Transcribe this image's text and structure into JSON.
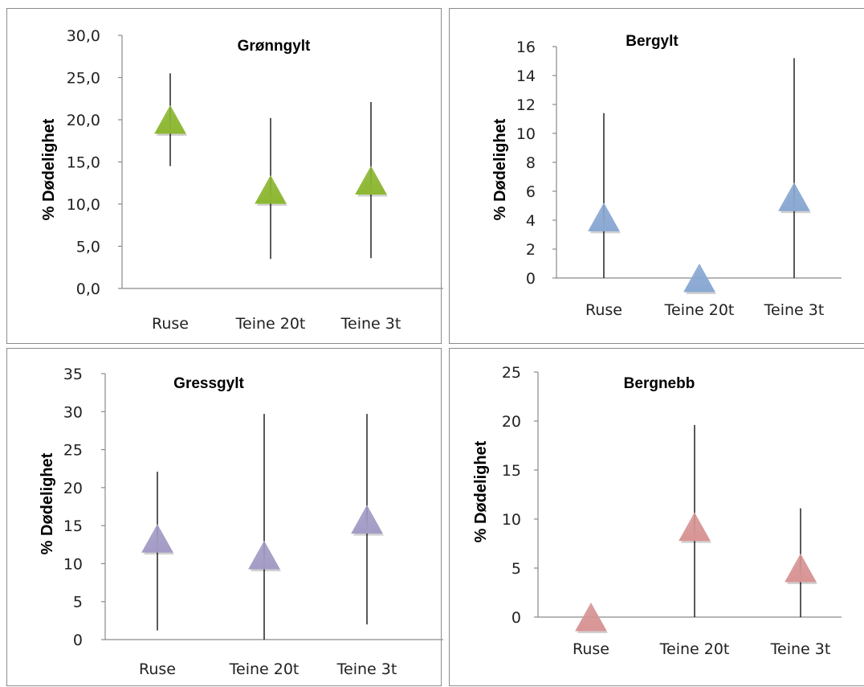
{
  "chart_data": [
    {
      "type": "scatter",
      "title": "Grønngylt",
      "ylabel": "% Dødelighet",
      "categories": [
        "Ruse",
        "Teine 20t",
        "Teine 3t"
      ],
      "values": [
        20.0,
        11.7,
        12.8
      ],
      "error_low": [
        14.5,
        3.5,
        3.6
      ],
      "error_high": [
        25.5,
        20.2,
        22.1
      ],
      "ylim": [
        0,
        30
      ],
      "yticks": [
        "0,0",
        "5,0",
        "10,0",
        "15,0",
        "20,0",
        "25,0",
        "30,0"
      ],
      "marker": "triangle",
      "color": "#8db832"
    },
    {
      "type": "scatter",
      "title": "Bergylt",
      "ylabel": "% Dødelighet",
      "categories": [
        "Ruse",
        "Teine 20t",
        "Teine 3t"
      ],
      "values": [
        4.2,
        0,
        5.6
      ],
      "error_low": [
        0,
        0,
        0
      ],
      "error_high": [
        11.4,
        0,
        15.2
      ],
      "ylim": [
        0,
        16
      ],
      "yticks": [
        "0",
        "2",
        "4",
        "6",
        "8",
        "10",
        "12",
        "14",
        "16"
      ],
      "marker": "triangle",
      "color": "#8aa9d3"
    },
    {
      "type": "scatter",
      "title": "Gressgylt",
      "ylabel": "% Dødelighet",
      "categories": [
        "Ruse",
        "Teine 20t",
        "Teine 3t"
      ],
      "values": [
        13.3,
        11.1,
        15.8
      ],
      "error_low": [
        1.2,
        0,
        2.0
      ],
      "error_high": [
        22.1,
        29.7,
        29.7
      ],
      "ylim": [
        0,
        35
      ],
      "yticks": [
        "0",
        "5",
        "10",
        "15",
        "20",
        "25",
        "30",
        "35"
      ],
      "marker": "triangle",
      "color": "#a49cc6"
    },
    {
      "type": "scatter",
      "title": "Bergnebb",
      "ylabel": "% Dødelighet",
      "categories": [
        "Ruse",
        "Teine 20t",
        "Teine 3t"
      ],
      "values": [
        0,
        9.2,
        5.0
      ],
      "error_low": [
        0,
        0,
        0
      ],
      "error_high": [
        0,
        19.6,
        11.1
      ],
      "ylim": [
        0,
        25
      ],
      "yticks": [
        "0",
        "5",
        "10",
        "15",
        "20",
        "25"
      ],
      "marker": "triangle",
      "color": "#d99595"
    }
  ]
}
